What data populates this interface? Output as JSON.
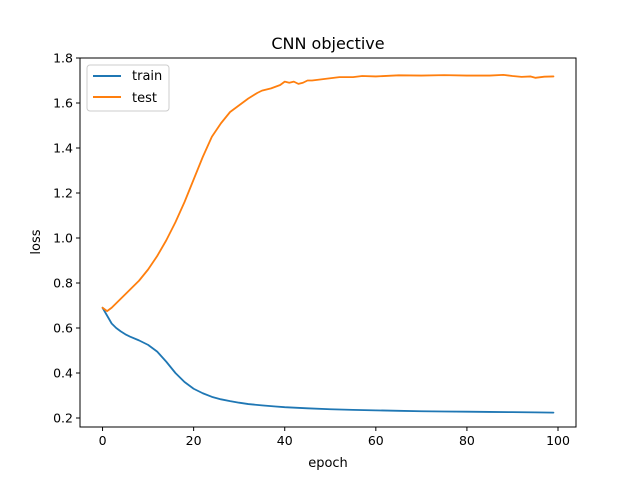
{
  "chart_data": {
    "type": "line",
    "title": "CNN objective",
    "xlabel": "epoch",
    "ylabel": "loss",
    "xlim": [
      -4.95,
      103.95
    ],
    "ylim": [
      0.16,
      1.8
    ],
    "xticks": [
      0,
      20,
      40,
      60,
      80,
      100
    ],
    "yticks": [
      0.2,
      0.4,
      0.6,
      0.8,
      1.0,
      1.2,
      1.4,
      1.6,
      1.8
    ],
    "ytick_labels": [
      "0.2",
      "0.4",
      "0.6",
      "0.8",
      "1.0",
      "1.2",
      "1.4",
      "1.6",
      "1.8"
    ],
    "grid": false,
    "legend_position": "top-left",
    "series": [
      {
        "name": "train",
        "color": "#1f77b4",
        "x": [
          0,
          1,
          2,
          3,
          4,
          5,
          6,
          8,
          10,
          12,
          14,
          16,
          18,
          20,
          22,
          24,
          26,
          28,
          30,
          32,
          35,
          38,
          40,
          45,
          50,
          55,
          60,
          65,
          70,
          75,
          80,
          85,
          90,
          95,
          99
        ],
        "y": [
          0.69,
          0.655,
          0.62,
          0.6,
          0.585,
          0.572,
          0.562,
          0.545,
          0.525,
          0.495,
          0.45,
          0.4,
          0.36,
          0.33,
          0.31,
          0.294,
          0.283,
          0.275,
          0.268,
          0.262,
          0.256,
          0.251,
          0.248,
          0.243,
          0.239,
          0.236,
          0.234,
          0.232,
          0.23,
          0.229,
          0.228,
          0.227,
          0.226,
          0.225,
          0.224
        ]
      },
      {
        "name": "test",
        "color": "#ff7f0e",
        "x": [
          0,
          1,
          2,
          4,
          6,
          8,
          10,
          12,
          14,
          16,
          18,
          20,
          22,
          24,
          26,
          28,
          30,
          32,
          34,
          35,
          37,
          39,
          40,
          41,
          42,
          43,
          44,
          45,
          46,
          48,
          50,
          52,
          55,
          57,
          60,
          65,
          70,
          75,
          80,
          85,
          88,
          90,
          92,
          94,
          95,
          97,
          99
        ],
        "y": [
          0.69,
          0.675,
          0.69,
          0.73,
          0.77,
          0.81,
          0.86,
          0.92,
          0.99,
          1.07,
          1.16,
          1.26,
          1.36,
          1.45,
          1.51,
          1.56,
          1.59,
          1.62,
          1.645,
          1.655,
          1.665,
          1.68,
          1.695,
          1.69,
          1.695,
          1.685,
          1.69,
          1.7,
          1.7,
          1.705,
          1.71,
          1.715,
          1.715,
          1.72,
          1.718,
          1.723,
          1.722,
          1.724,
          1.722,
          1.722,
          1.725,
          1.72,
          1.716,
          1.718,
          1.712,
          1.717,
          1.718
        ]
      }
    ]
  }
}
